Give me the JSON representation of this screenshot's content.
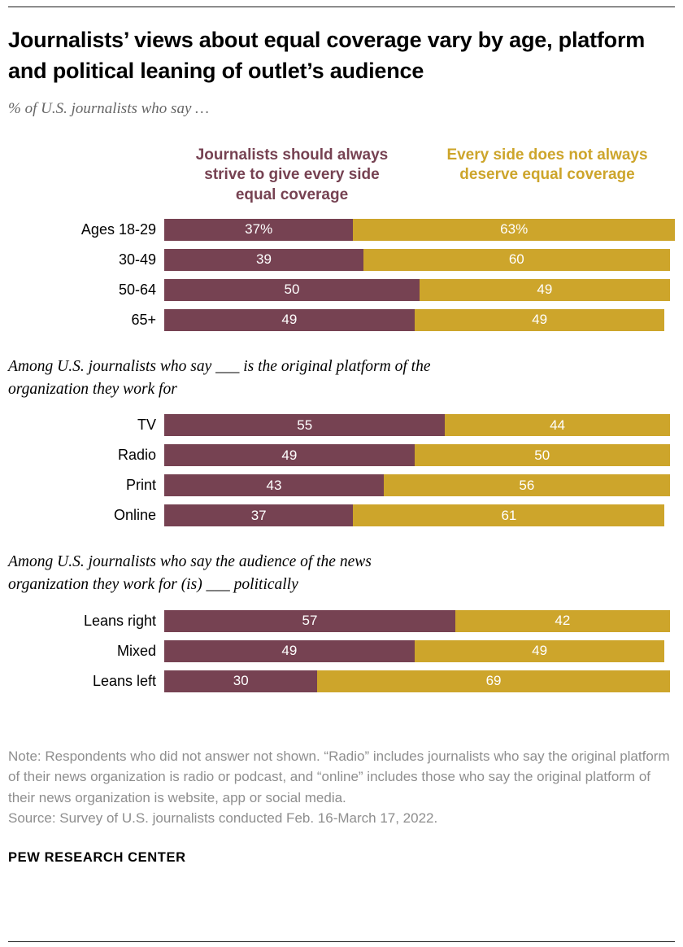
{
  "header": {
    "title": "Journalists’ views about equal coverage vary by age, platform and political leaning of outlet’s audience",
    "subtitle": "% of U.S. journalists who say …"
  },
  "colors": {
    "maroon": "#764252",
    "gold": "#CDA52B"
  },
  "chart_data": {
    "type": "bar",
    "variant": "horizontal-stacked",
    "unit": "%",
    "xlim": [
      0,
      100
    ],
    "legend": [
      {
        "label": "Journalists should always strive to give every side equal coverage",
        "color_key": "maroon"
      },
      {
        "label": "Every side does not always deserve equal coverage",
        "color_key": "gold"
      }
    ],
    "groups": [
      {
        "heading": "",
        "rows": [
          {
            "label": "Ages 18-29",
            "left": 37,
            "right": 63,
            "left_text": "37%",
            "right_text": "63%"
          },
          {
            "label": "30-49",
            "left": 39,
            "right": 60,
            "left_text": "39",
            "right_text": "60"
          },
          {
            "label": "50-64",
            "left": 50,
            "right": 49,
            "left_text": "50",
            "right_text": "49"
          },
          {
            "label": "65+",
            "left": 49,
            "right": 49,
            "left_text": "49",
            "right_text": "49"
          }
        ]
      },
      {
        "heading": "Among U.S. journalists who say ___ is the original platform of the organization they work for",
        "rows": [
          {
            "label": "TV",
            "left": 55,
            "right": 44,
            "left_text": "55",
            "right_text": "44"
          },
          {
            "label": "Radio",
            "left": 49,
            "right": 50,
            "left_text": "49",
            "right_text": "50"
          },
          {
            "label": "Print",
            "left": 43,
            "right": 56,
            "left_text": "43",
            "right_text": "56"
          },
          {
            "label": "Online",
            "left": 37,
            "right": 61,
            "left_text": "37",
            "right_text": "61"
          }
        ]
      },
      {
        "heading": "Among U.S. journalists who say the audience of the news organization they work for (is) ___ politically",
        "rows": [
          {
            "label": "Leans right",
            "left": 57,
            "right": 42,
            "left_text": "57",
            "right_text": "42"
          },
          {
            "label": "Mixed",
            "left": 49,
            "right": 49,
            "left_text": "49",
            "right_text": "49"
          },
          {
            "label": "Leans left",
            "left": 30,
            "right": 69,
            "left_text": "30",
            "right_text": "69"
          }
        ]
      }
    ]
  },
  "footer": {
    "note": "Note: Respondents who did not answer not shown. “Radio” includes journalists who say the original platform of their news organization is radio or podcast, and “online” includes those who say the original platform of their news organization is website, app or social media.",
    "source": "Source: Survey of U.S. journalists conducted Feb. 16-March 17, 2022.",
    "brand": "PEW RESEARCH CENTER"
  }
}
